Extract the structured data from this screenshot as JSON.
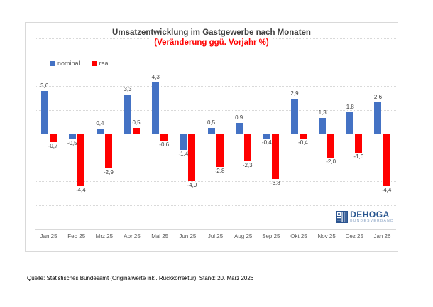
{
  "chart_data": {
    "type": "bar",
    "title": "Umsatzentwicklung im Gastgewerbe nach Monaten",
    "subtitle": "(Veränderung ggü. Vorjahr %)",
    "title_color": "#404040",
    "subtitle_color": "#ff0000",
    "categories": [
      "Jan 25",
      "Feb 25",
      "Mrz 25",
      "Apr 25",
      "Mai 25",
      "Jun 25",
      "Jul 25",
      "Aug 25",
      "Sep 25",
      "Okt 25",
      "Nov 25",
      "Dez 25",
      "Jan 26"
    ],
    "series": [
      {
        "name": "nominal",
        "color": "#4472c4",
        "values": [
          3.6,
          -0.5,
          0.4,
          3.3,
          4.3,
          -1.4,
          0.5,
          0.9,
          -0.4,
          2.9,
          1.3,
          1.8,
          2.6
        ]
      },
      {
        "name": "real",
        "color": "#ff0000",
        "values": [
          -0.7,
          -4.4,
          -2.9,
          0.5,
          -0.6,
          -4.0,
          -2.8,
          -2.3,
          -3.8,
          -0.4,
          -2.0,
          -1.6,
          -4.4
        ]
      }
    ],
    "ylim": [
      -8,
      8
    ],
    "grid": true,
    "grid_step": 2,
    "grid_color": "#d9d9d9",
    "axis_color": "#c9c9c9",
    "legend_position": "top-left",
    "value_decimal_separator": ",",
    "data_label_color": "#404040",
    "tick_label_color": "#595959"
  },
  "logo": {
    "name": "DEHOGA",
    "sub": "BUNDESVERBAND",
    "color": "#29568f",
    "icon": "dehoga-mark"
  },
  "footer": {
    "text": "Quelle: Statistisches Bundesamt (Originalwerte inkl. Rückkorrektur); Stand: 20. März 2026"
  }
}
